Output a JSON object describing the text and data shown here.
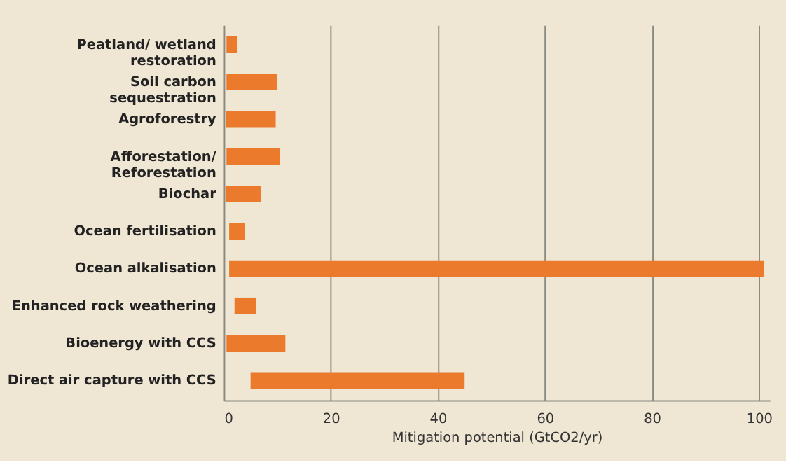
{
  "chart_data": {
    "type": "bar",
    "orientation": "horizontal",
    "xlabel": "Mitigation potential (GtCO2/yr)",
    "categories": [
      "Peatland/ wetland\nrestoration",
      "Soil carbon\nsequestration",
      "Agroforestry",
      "Afforestation/\nReforestation",
      "Biochar",
      "Ocean fertilisation",
      "Ocean alkalisation",
      "Enhanced rock weathering",
      "Bioenergy with CCS",
      "Direct air capture with CCS"
    ],
    "base": [
      0.5,
      0.5,
      0.4,
      0.5,
      0.3,
      1,
      1,
      2,
      0.5,
      5
    ],
    "values": [
      2,
      9.5,
      9.3,
      10,
      6.7,
      3,
      100,
      4,
      11,
      40
    ],
    "color": "#ec7a2c",
    "xlim": [
      0,
      102
    ],
    "xticks": [
      0,
      20,
      40,
      60,
      80,
      100
    ],
    "grid": "x"
  }
}
